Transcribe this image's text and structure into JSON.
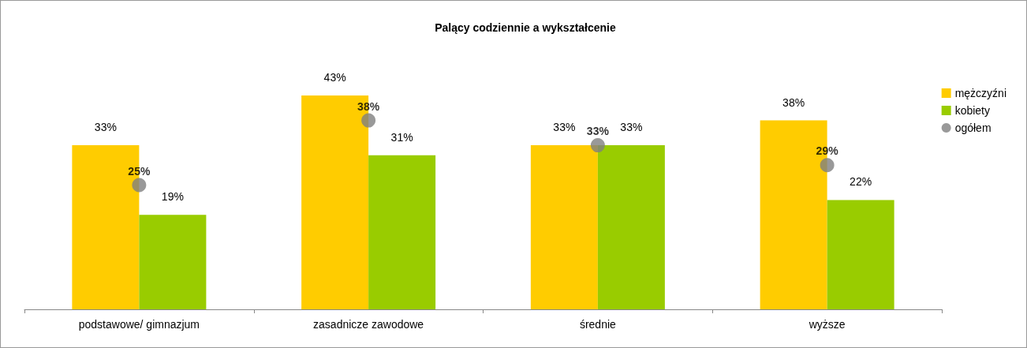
{
  "chart_data": {
    "type": "bar",
    "title": "Palący codziennie a wykształcenie",
    "categories": [
      "podstawowe/ gimnazjum",
      "zasadnicze zawodowe",
      "średnie",
      "wyższe"
    ],
    "series": [
      {
        "name": "mężczyźni",
        "color": "#ffcc00",
        "values": [
          33,
          43,
          33,
          38
        ],
        "value_labels": [
          "33%",
          "43%",
          "33%",
          "38%"
        ]
      },
      {
        "name": "kobiety",
        "color": "#99cc00",
        "values": [
          19,
          31,
          33,
          22
        ],
        "value_labels": [
          "19%",
          "31%",
          "33%",
          "22%"
        ]
      },
      {
        "name": "ogółem",
        "type": "scatter",
        "color": "#808080",
        "x": [
          "podstawowe/ gimnazjum",
          "zasadnicze zawodowe",
          "średnie",
          "wyższe"
        ],
        "values": [
          25,
          38,
          33,
          29
        ],
        "value_labels": [
          "25%",
          "38%",
          "33%",
          "29%"
        ]
      }
    ],
    "legend": "right",
    "marker": "circle"
  }
}
